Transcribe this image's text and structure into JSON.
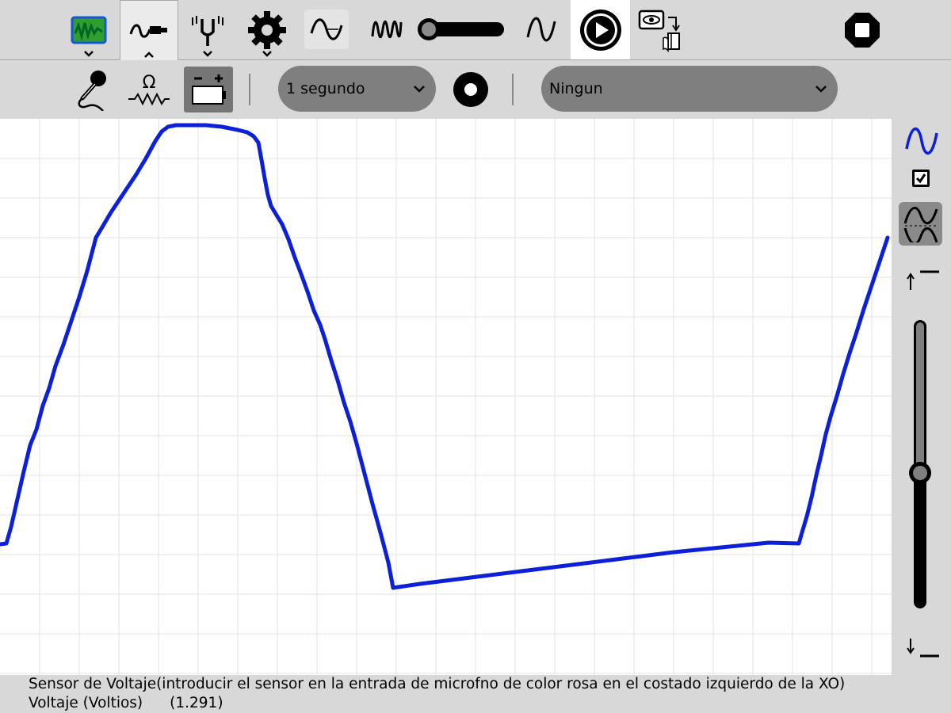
{
  "toolbar": {
    "tabs": [
      {
        "id": "activity",
        "icon": "oscilloscope-activity-icon"
      },
      {
        "id": "sensors",
        "icon": "sensor-probe-icon",
        "active": true
      },
      {
        "id": "sound",
        "icon": "tuning-fork-icon"
      },
      {
        "id": "settings",
        "icon": "gear-icon"
      }
    ],
    "controls": [
      {
        "icon": "sine-waveform-icon"
      },
      {
        "icon": "frequency-waves-icon"
      },
      {
        "icon": "gain-slider",
        "level": 0.0
      },
      {
        "icon": "sine-wave-icon"
      },
      {
        "icon": "play-icon"
      },
      {
        "icon": "snapshot-journal-icon"
      },
      {
        "icon": "stop-icon"
      }
    ]
  },
  "sensor_toolbar": {
    "buttons": [
      {
        "icon": "microphone-icon"
      },
      {
        "icon": "resistance-ohm-icon"
      },
      {
        "icon": "voltage-battery-icon",
        "selected": true
      }
    ],
    "interval_select": {
      "value": "1 segundo"
    },
    "record_button": {
      "icon": "record-icon"
    },
    "trigger_select": {
      "value": "Ningun"
    }
  },
  "right_panel": {
    "wave_icon": "sine-wave-icon",
    "show_wave_checked": true,
    "invert_icon": "invert-wave-icon",
    "y_gain_slider_level": 0.47,
    "up_icon": "arrow-up-icon",
    "down_icon": "arrow-down-icon"
  },
  "colors": {
    "trace": "#0c1fd9",
    "grid": "#e3e3e3",
    "background": "#d8d8d8",
    "active_icon": "#2f9e2f"
  },
  "status": {
    "description": "Sensor de Voltaje(introducir el sensor en la entrada de microfno de color rosa en el costado izquierdo de la XO)",
    "label": "Voltaje (Voltios)",
    "reading": "(1.291)"
  }
}
